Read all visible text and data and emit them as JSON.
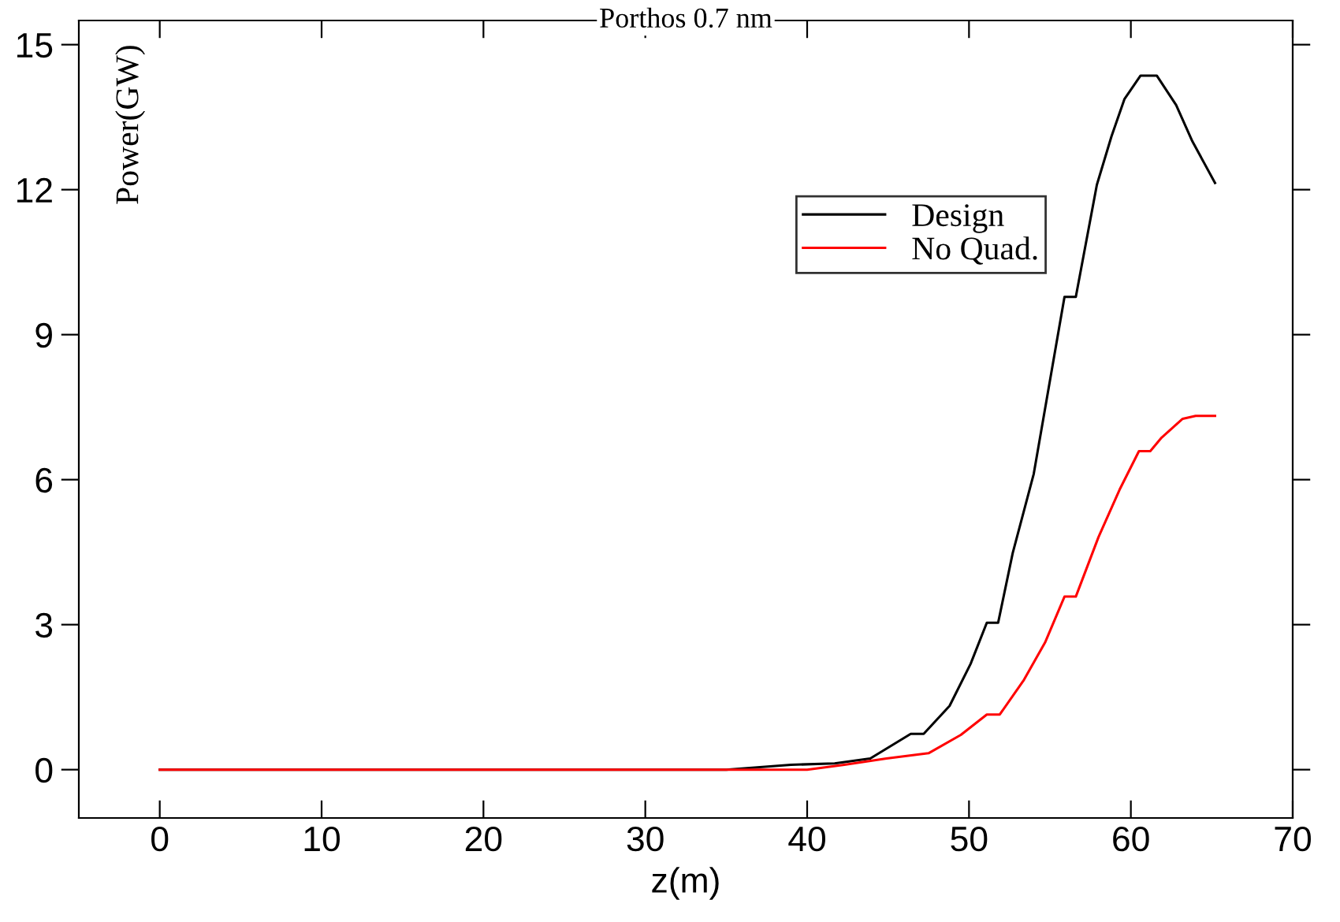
{
  "chart_data": {
    "type": "line",
    "title": "Porthos 0.7 nm",
    "xlabel": "z(m)",
    "ylabel": "Power(GW)",
    "xlim": [
      -5,
      70
    ],
    "xticks": [
      0,
      10,
      20,
      30,
      40,
      50,
      60,
      70
    ],
    "ylim": [
      -1,
      15.5
    ],
    "yticks": [
      0,
      3,
      6,
      9,
      12,
      15
    ],
    "grid": false,
    "legend": "top right",
    "marker": "none",
    "line_style": "solid",
    "series": [
      {
        "name": "Design",
        "color": "#000000",
        "x": [
          0,
          35,
          39,
          41.7,
          43.9,
          46.4,
          47.2,
          48.8,
          50.1,
          51.1,
          51.8,
          52.7,
          54.0,
          55.9,
          56.6,
          57.9,
          58.8,
          59.6,
          60.6,
          61.6,
          62.8,
          63.8,
          65.2
        ],
        "values": [
          0,
          0,
          0.1,
          0.13,
          0.23,
          0.74,
          0.74,
          1.32,
          2.19,
          3.04,
          3.04,
          4.48,
          6.12,
          9.78,
          9.78,
          12.1,
          13.1,
          13.87,
          14.36,
          14.36,
          13.75,
          13.0,
          12.14
        ]
      },
      {
        "name": "No Quad.",
        "color": "#ff0000",
        "x": [
          0,
          40,
          42.3,
          44.9,
          47.5,
          49.5,
          51.1,
          51.9,
          53.4,
          54.7,
          55.9,
          56.6,
          58.0,
          59.3,
          60.5,
          61.2,
          61.9,
          63.2,
          64.0,
          65.2
        ],
        "values": [
          0,
          0,
          0.1,
          0.23,
          0.34,
          0.72,
          1.14,
          1.14,
          1.86,
          2.63,
          3.58,
          3.58,
          4.81,
          5.79,
          6.59,
          6.59,
          6.87,
          7.26,
          7.32,
          7.32
        ]
      }
    ]
  }
}
